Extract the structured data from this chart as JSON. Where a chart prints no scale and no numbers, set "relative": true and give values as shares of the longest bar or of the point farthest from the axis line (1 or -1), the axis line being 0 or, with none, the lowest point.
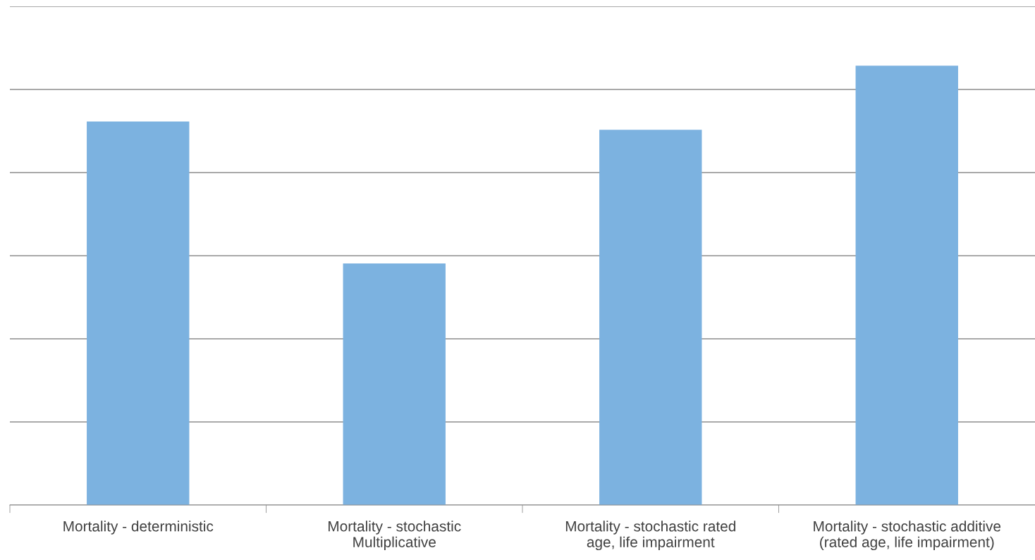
{
  "chart_data": {
    "type": "bar",
    "relative": true,
    "categories": [
      "Mortality - deterministic",
      "Mortality - stochastic\nMultiplicative",
      "Mortality - stochastic rated\nage, life impairment",
      "Mortality - stochastic additive\n(rated age, life impairment)"
    ],
    "values": [
      0.873,
      0.55,
      0.854,
      1
    ],
    "color": "#7cb2e0",
    "grid": "y"
  }
}
